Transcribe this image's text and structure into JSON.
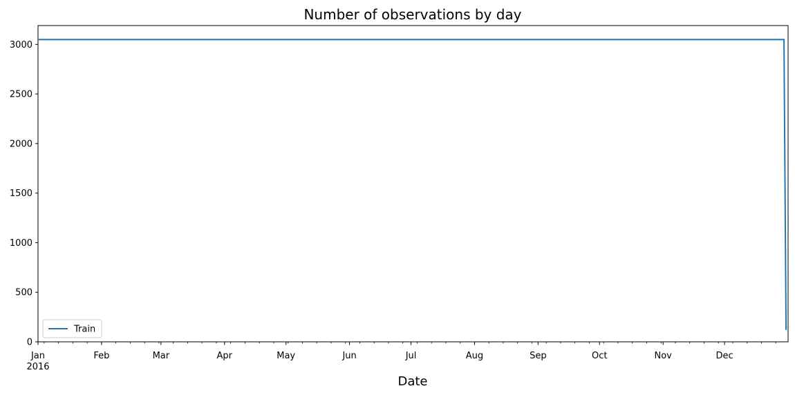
{
  "chart_data": {
    "type": "line",
    "title": "Number of observations by day",
    "xlabel": "Date",
    "ylabel": "",
    "x_ticks": [
      "Jan",
      "Feb",
      "Mar",
      "Apr",
      "May",
      "Jun",
      "Jul",
      "Aug",
      "Sep",
      "Oct",
      "Nov",
      "Dec"
    ],
    "x_year_label": "2016",
    "x_range": [
      "2016-01-01",
      "2017-01-01"
    ],
    "y_ticks": [
      0,
      500,
      1000,
      1500,
      2000,
      2500,
      3000
    ],
    "ylim": [
      0,
      3190
    ],
    "grid": false,
    "legend_position": "lower-left",
    "series": [
      {
        "name": "Train",
        "color": "#1f77b4",
        "x": [
          "2016-01-01",
          "2016-12-30",
          "2016-12-31"
        ],
        "values": [
          3049,
          3049,
          120
        ]
      }
    ]
  }
}
